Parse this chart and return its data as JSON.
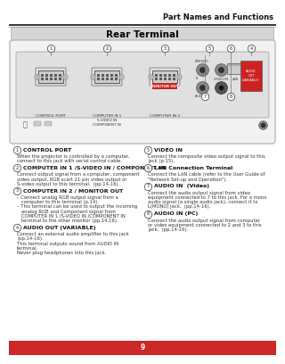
{
  "page_title": "Part Names and Functions",
  "section_title": "Rear Terminal",
  "bg_color": "#ffffff",
  "red_bar_color": "#cc2828",
  "page_number": "9",
  "left_items": [
    {
      "num": "1",
      "title": "CONTROL PORT",
      "body": "When the projector is controlled by a computer,\nconnect to this jack with serial control cable."
    },
    {
      "num": "2",
      "title": "COMPUTER IN 1 /S-VIDEO IN / COMPONENT IN",
      "body": "Connect output signal from a computer, component\nvideo output, RGB scart 21-pin video output or\nS-video output to this terminal.  (pp.14-16)."
    },
    {
      "num": "3",
      "title": "COMPUTER IN 2 / MONITOR OUT",
      "body": "– Connect analog RGB output signal from a\n   computer to this terminal (p.14).\n– This terminal can be used to output the incoming\n   analog RGB and Component signal from\n   COMPUTER IN 1 /S-VIDEO IN /COMPONENT IN\n   terminal to the other monitor (pp.14,16)."
    },
    {
      "num": "4",
      "title": "AUDIO OUT (VARIABLE)",
      "body": "Connect an external audio amplifier to this jack\n(pp.14-16).\nThis terminal outputs sound from AUDIO IN\nterminal.\nNever plug headphones into this jack."
    }
  ],
  "right_items": [
    {
      "num": "5",
      "title": "VIDEO IN",
      "body": "Connect the composite video output signal to this\njack (p.15)."
    },
    {
      "num": "6",
      "title": "LAN Connection Terminal",
      "body": "Connect the LAN cable (refer to the User Guide of\n\"Network Set-up and Operation\")."
    },
    {
      "num": "7",
      "title": "AUDIO IN  (Video)",
      "body": "Connect the audio output signal from video\nequipment connected to 7 to this jack. For a mono\naudio signal (a single audio jack), connect it to\nL(MONO) jack.  (pp.14-16)."
    },
    {
      "num": "8",
      "title": "AUDIO IN (PC)",
      "body": "Connect the audio output signal from computer\nor video equipment connected to 2 and 3 to this\njack.  (pp.14-16)."
    }
  ]
}
